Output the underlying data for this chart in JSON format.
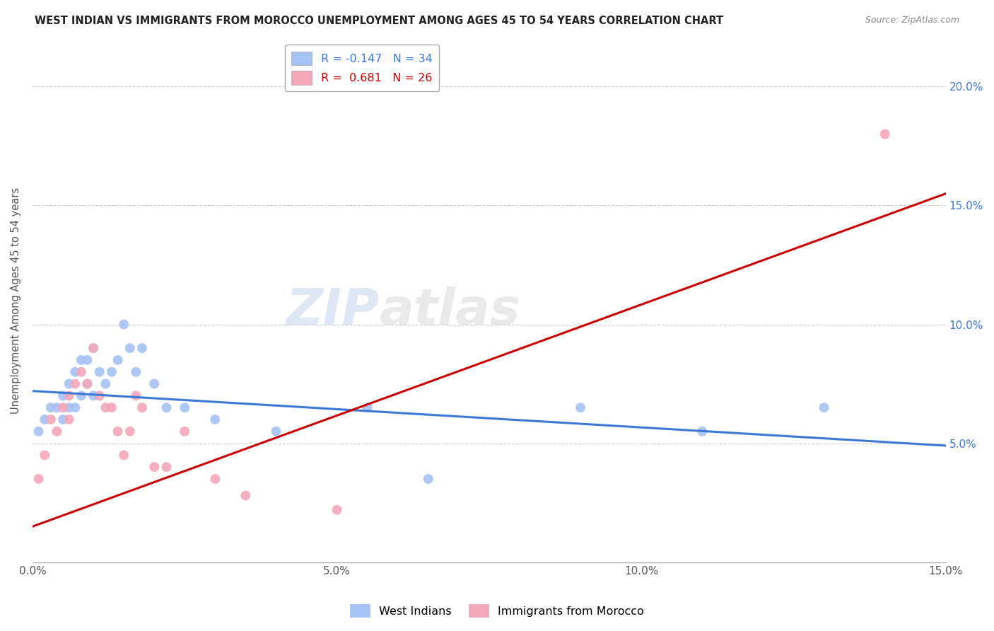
{
  "title": "WEST INDIAN VS IMMIGRANTS FROM MOROCCO UNEMPLOYMENT AMONG AGES 45 TO 54 YEARS CORRELATION CHART",
  "source": "Source: ZipAtlas.com",
  "ylabel": "Unemployment Among Ages 45 to 54 years",
  "xlim": [
    0.0,
    0.15
  ],
  "ylim": [
    0.0,
    0.22
  ],
  "xticks": [
    0.0,
    0.025,
    0.05,
    0.075,
    0.1,
    0.125,
    0.15
  ],
  "xtick_labels": [
    "0.0%",
    "",
    "5.0%",
    "",
    "10.0%",
    "",
    "15.0%"
  ],
  "yticks": [
    0.0,
    0.05,
    0.1,
    0.15,
    0.2
  ],
  "ytick_labels": [
    "",
    "5.0%",
    "10.0%",
    "15.0%",
    "20.0%"
  ],
  "blue_R": -0.147,
  "blue_N": 34,
  "pink_R": 0.681,
  "pink_N": 26,
  "blue_color": "#a4c2f4",
  "pink_color": "#f4a7b9",
  "blue_line_color": "#3c78d8",
  "pink_line_color": "#cc0000",
  "watermark": "ZIPatlas",
  "legend_label_blue": "West Indians",
  "legend_label_pink": "Immigrants from Morocco",
  "blue_line_x0": 0.0,
  "blue_line_y0": 0.072,
  "blue_line_x1": 0.15,
  "blue_line_y1": 0.049,
  "pink_line_x0": 0.0,
  "pink_line_y0": 0.015,
  "pink_line_x1": 0.15,
  "pink_line_y1": 0.155,
  "blue_x": [
    0.001,
    0.002,
    0.003,
    0.004,
    0.005,
    0.005,
    0.006,
    0.006,
    0.007,
    0.007,
    0.008,
    0.008,
    0.009,
    0.009,
    0.01,
    0.01,
    0.011,
    0.012,
    0.013,
    0.014,
    0.015,
    0.016,
    0.017,
    0.018,
    0.02,
    0.022,
    0.025,
    0.03,
    0.04,
    0.055,
    0.065,
    0.09,
    0.11,
    0.13
  ],
  "blue_y": [
    0.055,
    0.06,
    0.065,
    0.065,
    0.07,
    0.06,
    0.075,
    0.065,
    0.08,
    0.065,
    0.085,
    0.07,
    0.085,
    0.075,
    0.09,
    0.07,
    0.08,
    0.075,
    0.08,
    0.085,
    0.1,
    0.09,
    0.08,
    0.09,
    0.075,
    0.065,
    0.065,
    0.06,
    0.055,
    0.065,
    0.035,
    0.065,
    0.055,
    0.065
  ],
  "pink_x": [
    0.001,
    0.002,
    0.003,
    0.004,
    0.005,
    0.006,
    0.006,
    0.007,
    0.008,
    0.009,
    0.01,
    0.011,
    0.012,
    0.013,
    0.014,
    0.015,
    0.016,
    0.017,
    0.018,
    0.02,
    0.022,
    0.025,
    0.03,
    0.035,
    0.05,
    0.14
  ],
  "pink_y": [
    0.035,
    0.045,
    0.06,
    0.055,
    0.065,
    0.06,
    0.07,
    0.075,
    0.08,
    0.075,
    0.09,
    0.07,
    0.065,
    0.065,
    0.055,
    0.045,
    0.055,
    0.07,
    0.065,
    0.04,
    0.04,
    0.055,
    0.035,
    0.028,
    0.022,
    0.18
  ]
}
